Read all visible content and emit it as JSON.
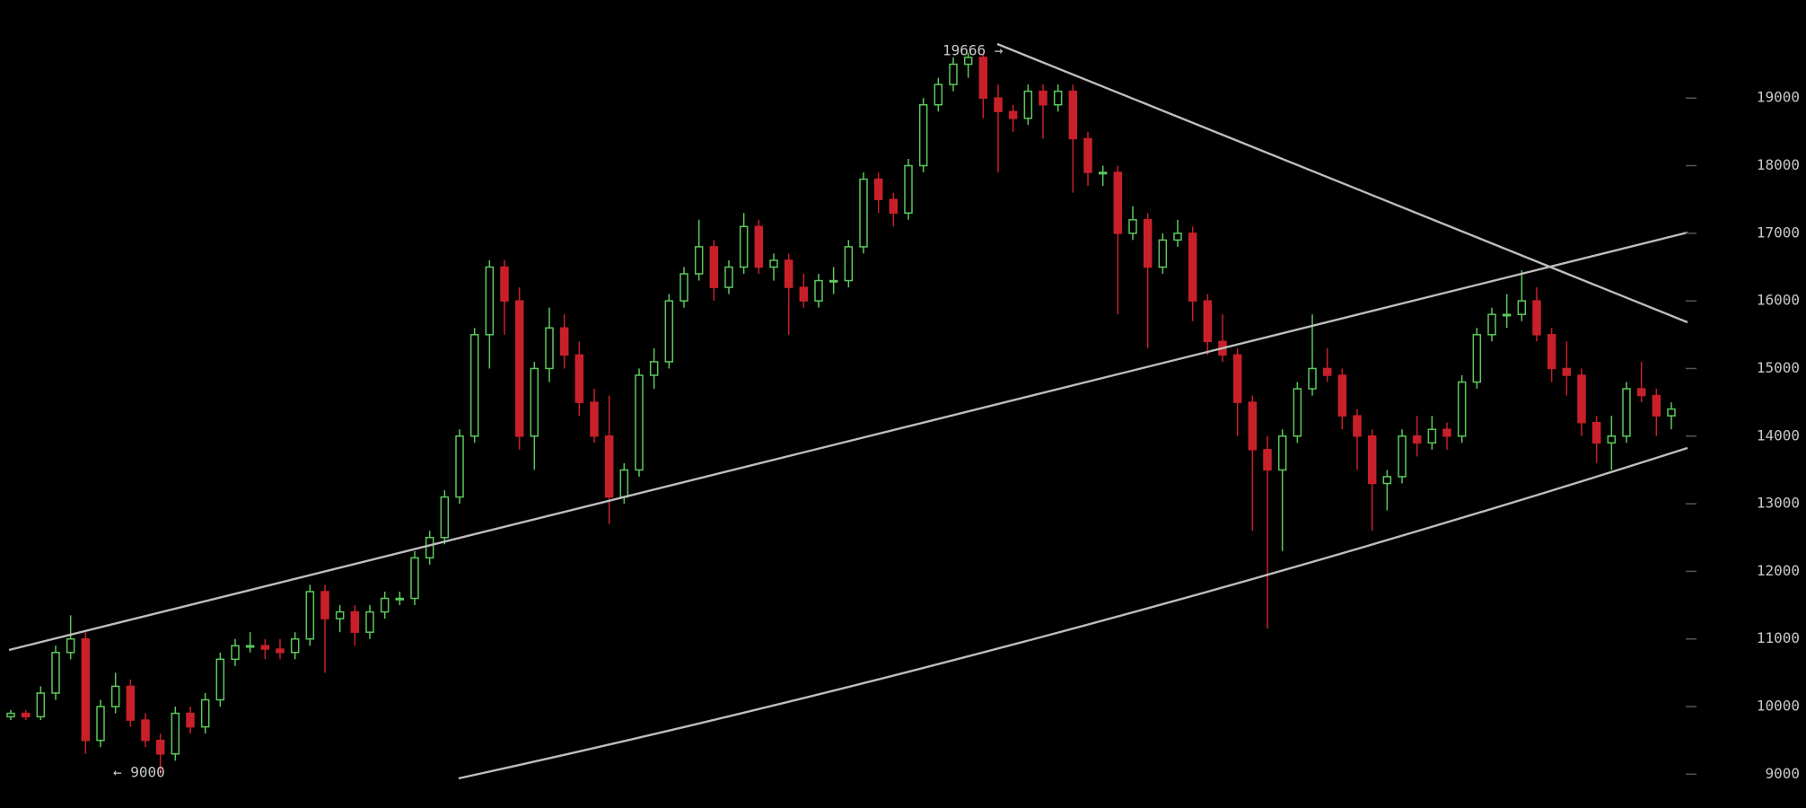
{
  "chart_data": {
    "type": "candlestick",
    "up_color": "#5cc85c",
    "down_color": "#c8202a",
    "ylim": [
      8500,
      20450
    ],
    "yticks": [
      9000,
      10000,
      11000,
      12000,
      13000,
      14000,
      15000,
      16000,
      17000,
      18000,
      19000
    ],
    "annotations": [
      "19666 →",
      "← 9000"
    ],
    "candles": [
      [
        9850,
        9950,
        9800,
        9900
      ],
      [
        9900,
        9950,
        9800,
        9850
      ],
      [
        9850,
        10300,
        9800,
        10200
      ],
      [
        10200,
        10900,
        10100,
        10800
      ],
      [
        10800,
        11350,
        10700,
        11000
      ],
      [
        11000,
        11100,
        9300,
        9500
      ],
      [
        9500,
        10100,
        9400,
        10000
      ],
      [
        10000,
        10500,
        9900,
        10300
      ],
      [
        10300,
        10400,
        9700,
        9800
      ],
      [
        9800,
        9900,
        9400,
        9500
      ],
      [
        9500,
        9600,
        9000,
        9300
      ],
      [
        9300,
        10000,
        9200,
        9900
      ],
      [
        9900,
        10000,
        9600,
        9700
      ],
      [
        9700,
        10200,
        9600,
        10100
      ],
      [
        10100,
        10800,
        10000,
        10700
      ],
      [
        10700,
        11000,
        10600,
        10900
      ],
      [
        10900,
        11100,
        10800,
        10900
      ],
      [
        10900,
        11000,
        10700,
        10850
      ],
      [
        10850,
        11000,
        10700,
        10800
      ],
      [
        10800,
        11100,
        10700,
        11000
      ],
      [
        11000,
        11800,
        10900,
        11700
      ],
      [
        11700,
        11800,
        10500,
        11300
      ],
      [
        11300,
        11500,
        11100,
        11400
      ],
      [
        11400,
        11500,
        10900,
        11100
      ],
      [
        11100,
        11500,
        11000,
        11400
      ],
      [
        11400,
        11700,
        11300,
        11600
      ],
      [
        11600,
        11700,
        11500,
        11600
      ],
      [
        11600,
        12300,
        11500,
        12200
      ],
      [
        12200,
        12600,
        12100,
        12500
      ],
      [
        12500,
        13200,
        12400,
        13100
      ],
      [
        13100,
        14100,
        13000,
        14000
      ],
      [
        14000,
        15600,
        13900,
        15500
      ],
      [
        15500,
        16600,
        15000,
        16500
      ],
      [
        16500,
        16600,
        15500,
        16000
      ],
      [
        16000,
        16200,
        13800,
        14000
      ],
      [
        14000,
        15100,
        13500,
        15000
      ],
      [
        15000,
        15900,
        14800,
        15600
      ],
      [
        15600,
        15800,
        15000,
        15200
      ],
      [
        15200,
        15400,
        14300,
        14500
      ],
      [
        14500,
        14700,
        13900,
        14000
      ],
      [
        14000,
        14600,
        12700,
        13100
      ],
      [
        13100,
        13600,
        13000,
        13500
      ],
      [
        13500,
        15000,
        13400,
        14900
      ],
      [
        14900,
        15300,
        14700,
        15100
      ],
      [
        15100,
        16100,
        15000,
        16000
      ],
      [
        16000,
        16500,
        15900,
        16400
      ],
      [
        16400,
        17200,
        16300,
        16800
      ],
      [
        16800,
        16900,
        16000,
        16200
      ],
      [
        16200,
        16600,
        16100,
        16500
      ],
      [
        16500,
        17300,
        16400,
        17100
      ],
      [
        17100,
        17200,
        16400,
        16500
      ],
      [
        16500,
        16700,
        16300,
        16600
      ],
      [
        16600,
        16700,
        15500,
        16200
      ],
      [
        16200,
        16400,
        15900,
        16000
      ],
      [
        16000,
        16400,
        15900,
        16300
      ],
      [
        16300,
        16500,
        16100,
        16300
      ],
      [
        16300,
        16900,
        16200,
        16800
      ],
      [
        16800,
        17900,
        16700,
        17800
      ],
      [
        17800,
        17900,
        17300,
        17500
      ],
      [
        17500,
        17600,
        17100,
        17300
      ],
      [
        17300,
        18100,
        17200,
        18000
      ],
      [
        18000,
        19000,
        17900,
        18900
      ],
      [
        18900,
        19300,
        18800,
        19200
      ],
      [
        19200,
        19600,
        19100,
        19500
      ],
      [
        19500,
        19666,
        19300,
        19600
      ],
      [
        19600,
        19650,
        18700,
        19000
      ],
      [
        19000,
        19200,
        17900,
        18800
      ],
      [
        18800,
        18900,
        18500,
        18700
      ],
      [
        18700,
        19200,
        18600,
        19100
      ],
      [
        19100,
        19200,
        18400,
        18900
      ],
      [
        18900,
        19200,
        18800,
        19100
      ],
      [
        19100,
        19200,
        17600,
        18400
      ],
      [
        18400,
        18500,
        17700,
        17900
      ],
      [
        17900,
        18000,
        17700,
        17900
      ],
      [
        17900,
        18000,
        15800,
        17000
      ],
      [
        17000,
        17400,
        16900,
        17200
      ],
      [
        17200,
        17300,
        15300,
        16500
      ],
      [
        16500,
        17000,
        16400,
        16900
      ],
      [
        16900,
        17200,
        16800,
        17000
      ],
      [
        17000,
        17100,
        15700,
        16000
      ],
      [
        16000,
        16100,
        15200,
        15400
      ],
      [
        15400,
        15800,
        15100,
        15200
      ],
      [
        15200,
        15300,
        14000,
        14500
      ],
      [
        14500,
        14600,
        12600,
        13800
      ],
      [
        13800,
        14000,
        11150,
        13500
      ],
      [
        13500,
        14100,
        12300,
        14000
      ],
      [
        14000,
        14800,
        13900,
        14700
      ],
      [
        14700,
        15800,
        14600,
        15000
      ],
      [
        15000,
        15300,
        14800,
        14900
      ],
      [
        14900,
        15000,
        14100,
        14300
      ],
      [
        14300,
        14400,
        13500,
        14000
      ],
      [
        14000,
        14100,
        12600,
        13300
      ],
      [
        13300,
        13500,
        12900,
        13400
      ],
      [
        13400,
        14100,
        13300,
        14000
      ],
      [
        14000,
        14300,
        13700,
        13900
      ],
      [
        13900,
        14300,
        13800,
        14100
      ],
      [
        14100,
        14200,
        13800,
        14000
      ],
      [
        14000,
        14900,
        13900,
        14800
      ],
      [
        14800,
        15600,
        14700,
        15500
      ],
      [
        15500,
        15900,
        15400,
        15800
      ],
      [
        15800,
        16100,
        15600,
        15800
      ],
      [
        15800,
        16450,
        15700,
        16000
      ],
      [
        16000,
        16200,
        15400,
        15500
      ],
      [
        15500,
        15600,
        14800,
        15000
      ],
      [
        15000,
        15400,
        14600,
        14900
      ],
      [
        14900,
        15000,
        14000,
        14200
      ],
      [
        14200,
        14300,
        13600,
        13900
      ],
      [
        13900,
        14300,
        13500,
        14000
      ],
      [
        14000,
        14800,
        13900,
        14700
      ],
      [
        14700,
        15100,
        14500,
        14600
      ],
      [
        14600,
        14700,
        14000,
        14300
      ],
      [
        14300,
        14500,
        14100,
        14400
      ]
    ]
  }
}
